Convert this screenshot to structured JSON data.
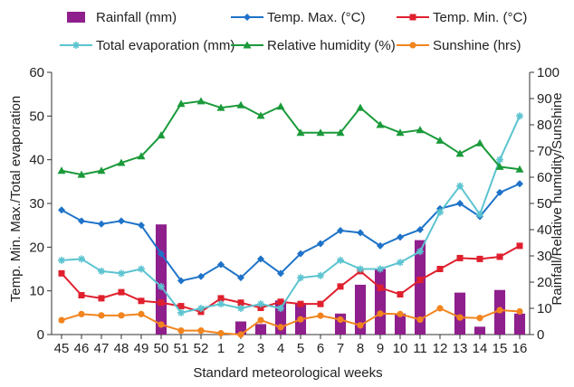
{
  "chart_data": {
    "type": "bar",
    "categories": [
      "45",
      "46",
      "47",
      "48",
      "49",
      "50",
      "51",
      "52",
      "1",
      "2",
      "3",
      "4",
      "5",
      "6",
      "7",
      "8",
      "9",
      "10",
      "11",
      "12",
      "13",
      "14",
      "15",
      "16"
    ],
    "xlabel": "Standard meteorological weeks",
    "ylabel_left": "Temp. Min. Max./Total evaporation",
    "ylabel_right": "Rainfall/Relative humidity/Sunshine",
    "ylim_left": [
      0,
      60
    ],
    "ylim_right": [
      0,
      100
    ],
    "yticks_left": [
      "0",
      "10",
      "20",
      "30",
      "40",
      "50",
      "60"
    ],
    "yticks_right": [
      "0",
      "10",
      "20",
      "30",
      "40",
      "50",
      "60",
      "70",
      "80",
      "90",
      "100"
    ],
    "grid": false,
    "legend_position": "top",
    "series": [
      {
        "name": "Rainfall (mm)",
        "type": "bar",
        "axis": "right",
        "color": "#8e1f8c",
        "marker": "bar",
        "values": [
          0,
          0,
          0,
          0,
          0,
          42,
          0,
          0,
          0,
          5,
          4,
          13,
          12,
          0,
          8,
          19,
          25,
          8,
          36,
          0,
          16,
          3,
          17,
          8
        ]
      },
      {
        "name": "Temp. Max. (°C)",
        "type": "line",
        "axis": "left",
        "color": "#1e73c8",
        "marker": "diamond",
        "values": [
          28.5,
          26,
          25.3,
          26,
          25,
          18.5,
          12.3,
          13.3,
          16,
          13,
          17.3,
          14,
          18.5,
          20.8,
          23.8,
          23.3,
          20.3,
          22.3,
          24,
          28.8,
          30,
          27,
          32.5,
          34.5
        ]
      },
      {
        "name": "Temp. Min. (°C)",
        "type": "line",
        "axis": "left",
        "color": "#e0202e",
        "marker": "square",
        "values": [
          14,
          9,
          8.3,
          9.7,
          7.7,
          7.3,
          6.5,
          5.2,
          8.3,
          7.3,
          6.1,
          7.5,
          7,
          7,
          11,
          14.5,
          10.7,
          9.2,
          12.5,
          15,
          17.5,
          17.3,
          17.8,
          20.3
        ]
      },
      {
        "name": "Total evaporation (mm)",
        "type": "line",
        "axis": "left",
        "color": "#5cc4d0",
        "marker": "star",
        "values": [
          17,
          17.3,
          14.5,
          14,
          15,
          11,
          5,
          6,
          7,
          6,
          7,
          6,
          13,
          13.5,
          17,
          15,
          15,
          16.5,
          19,
          28,
          34,
          27.5,
          40,
          50
        ]
      },
      {
        "name": "Relative humidity (%)",
        "type": "line",
        "axis": "right",
        "color": "#1a9a3a",
        "marker": "triangle",
        "values": [
          62.5,
          61,
          62.5,
          65.5,
          68,
          76,
          88,
          89,
          86.5,
          87.5,
          83.5,
          87,
          77,
          77,
          77,
          86.5,
          80,
          77,
          78,
          74,
          69,
          73,
          64,
          63
        ]
      },
      {
        "name": "Sunshine (hrs)",
        "type": "line",
        "axis": "right",
        "color": "#f2841e",
        "marker": "circle",
        "values": [
          5.5,
          7.8,
          7.3,
          7.3,
          7.8,
          3.8,
          1.5,
          1.5,
          0.5,
          0,
          5.5,
          2.8,
          5.8,
          7.2,
          5.7,
          3.5,
          8,
          7.8,
          5.7,
          10,
          6.5,
          6.3,
          9.3,
          8.8
        ]
      }
    ]
  }
}
